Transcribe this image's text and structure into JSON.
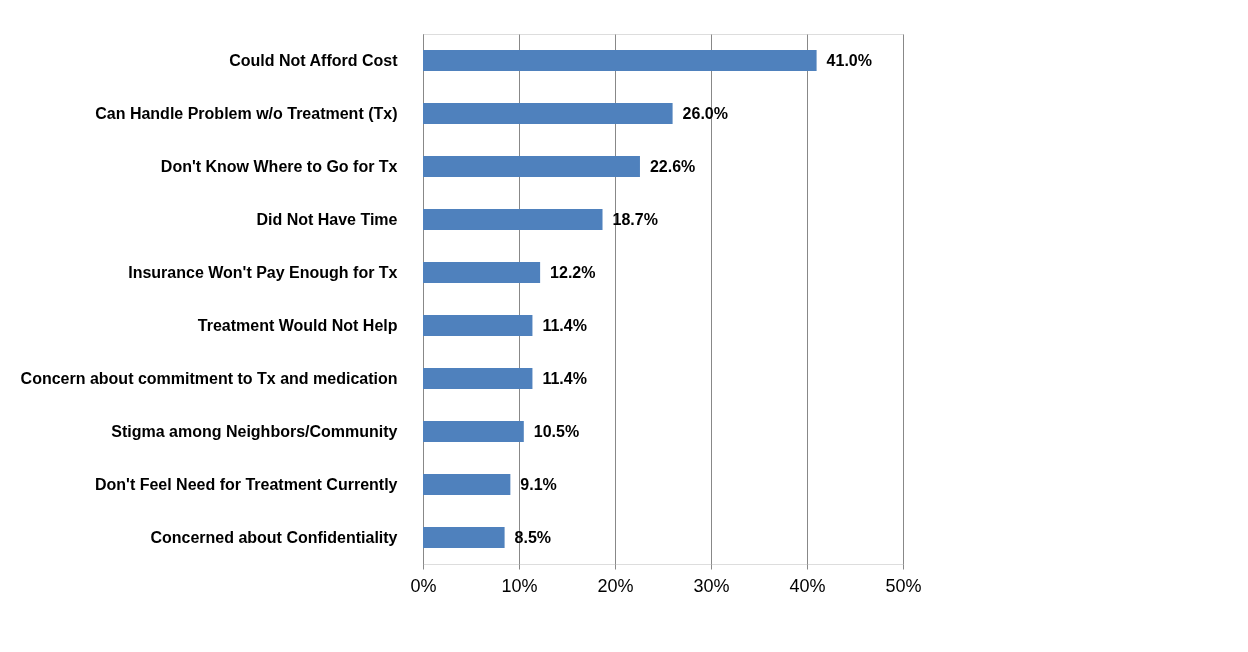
{
  "chart_data": {
    "type": "bar",
    "orientation": "horizontal",
    "categories": [
      "Could Not Afford Cost",
      "Can Handle Problem w/o Treatment (Tx)",
      "Don't Know Where to Go for Tx",
      "Did Not Have Time",
      "Insurance Won't Pay Enough for Tx",
      "Treatment Would Not Help",
      "Concern about commitment to Tx and medication",
      "Stigma among Neighbors/Community",
      "Don't Feel Need for Treatment Currently",
      "Concerned about Confidentiality"
    ],
    "values": [
      41.0,
      26.0,
      22.6,
      18.7,
      12.2,
      11.4,
      11.4,
      10.5,
      9.1,
      8.5
    ],
    "value_labels": [
      "41.0%",
      "26.0%",
      "22.6%",
      "18.7%",
      "12.2%",
      "11.4%",
      "11.4%",
      "10.5%",
      "9.1%",
      "8.5%"
    ],
    "color": "#4f81bd",
    "xlim": [
      0,
      50
    ],
    "xticks": [
      {
        "value": 0,
        "label": "0%"
      },
      {
        "value": 10,
        "label": "10%"
      },
      {
        "value": 20,
        "label": "20%"
      },
      {
        "value": 30,
        "label": "30%"
      },
      {
        "value": 40,
        "label": "40%"
      },
      {
        "value": 50,
        "label": "50%"
      }
    ],
    "grid": "x"
  }
}
